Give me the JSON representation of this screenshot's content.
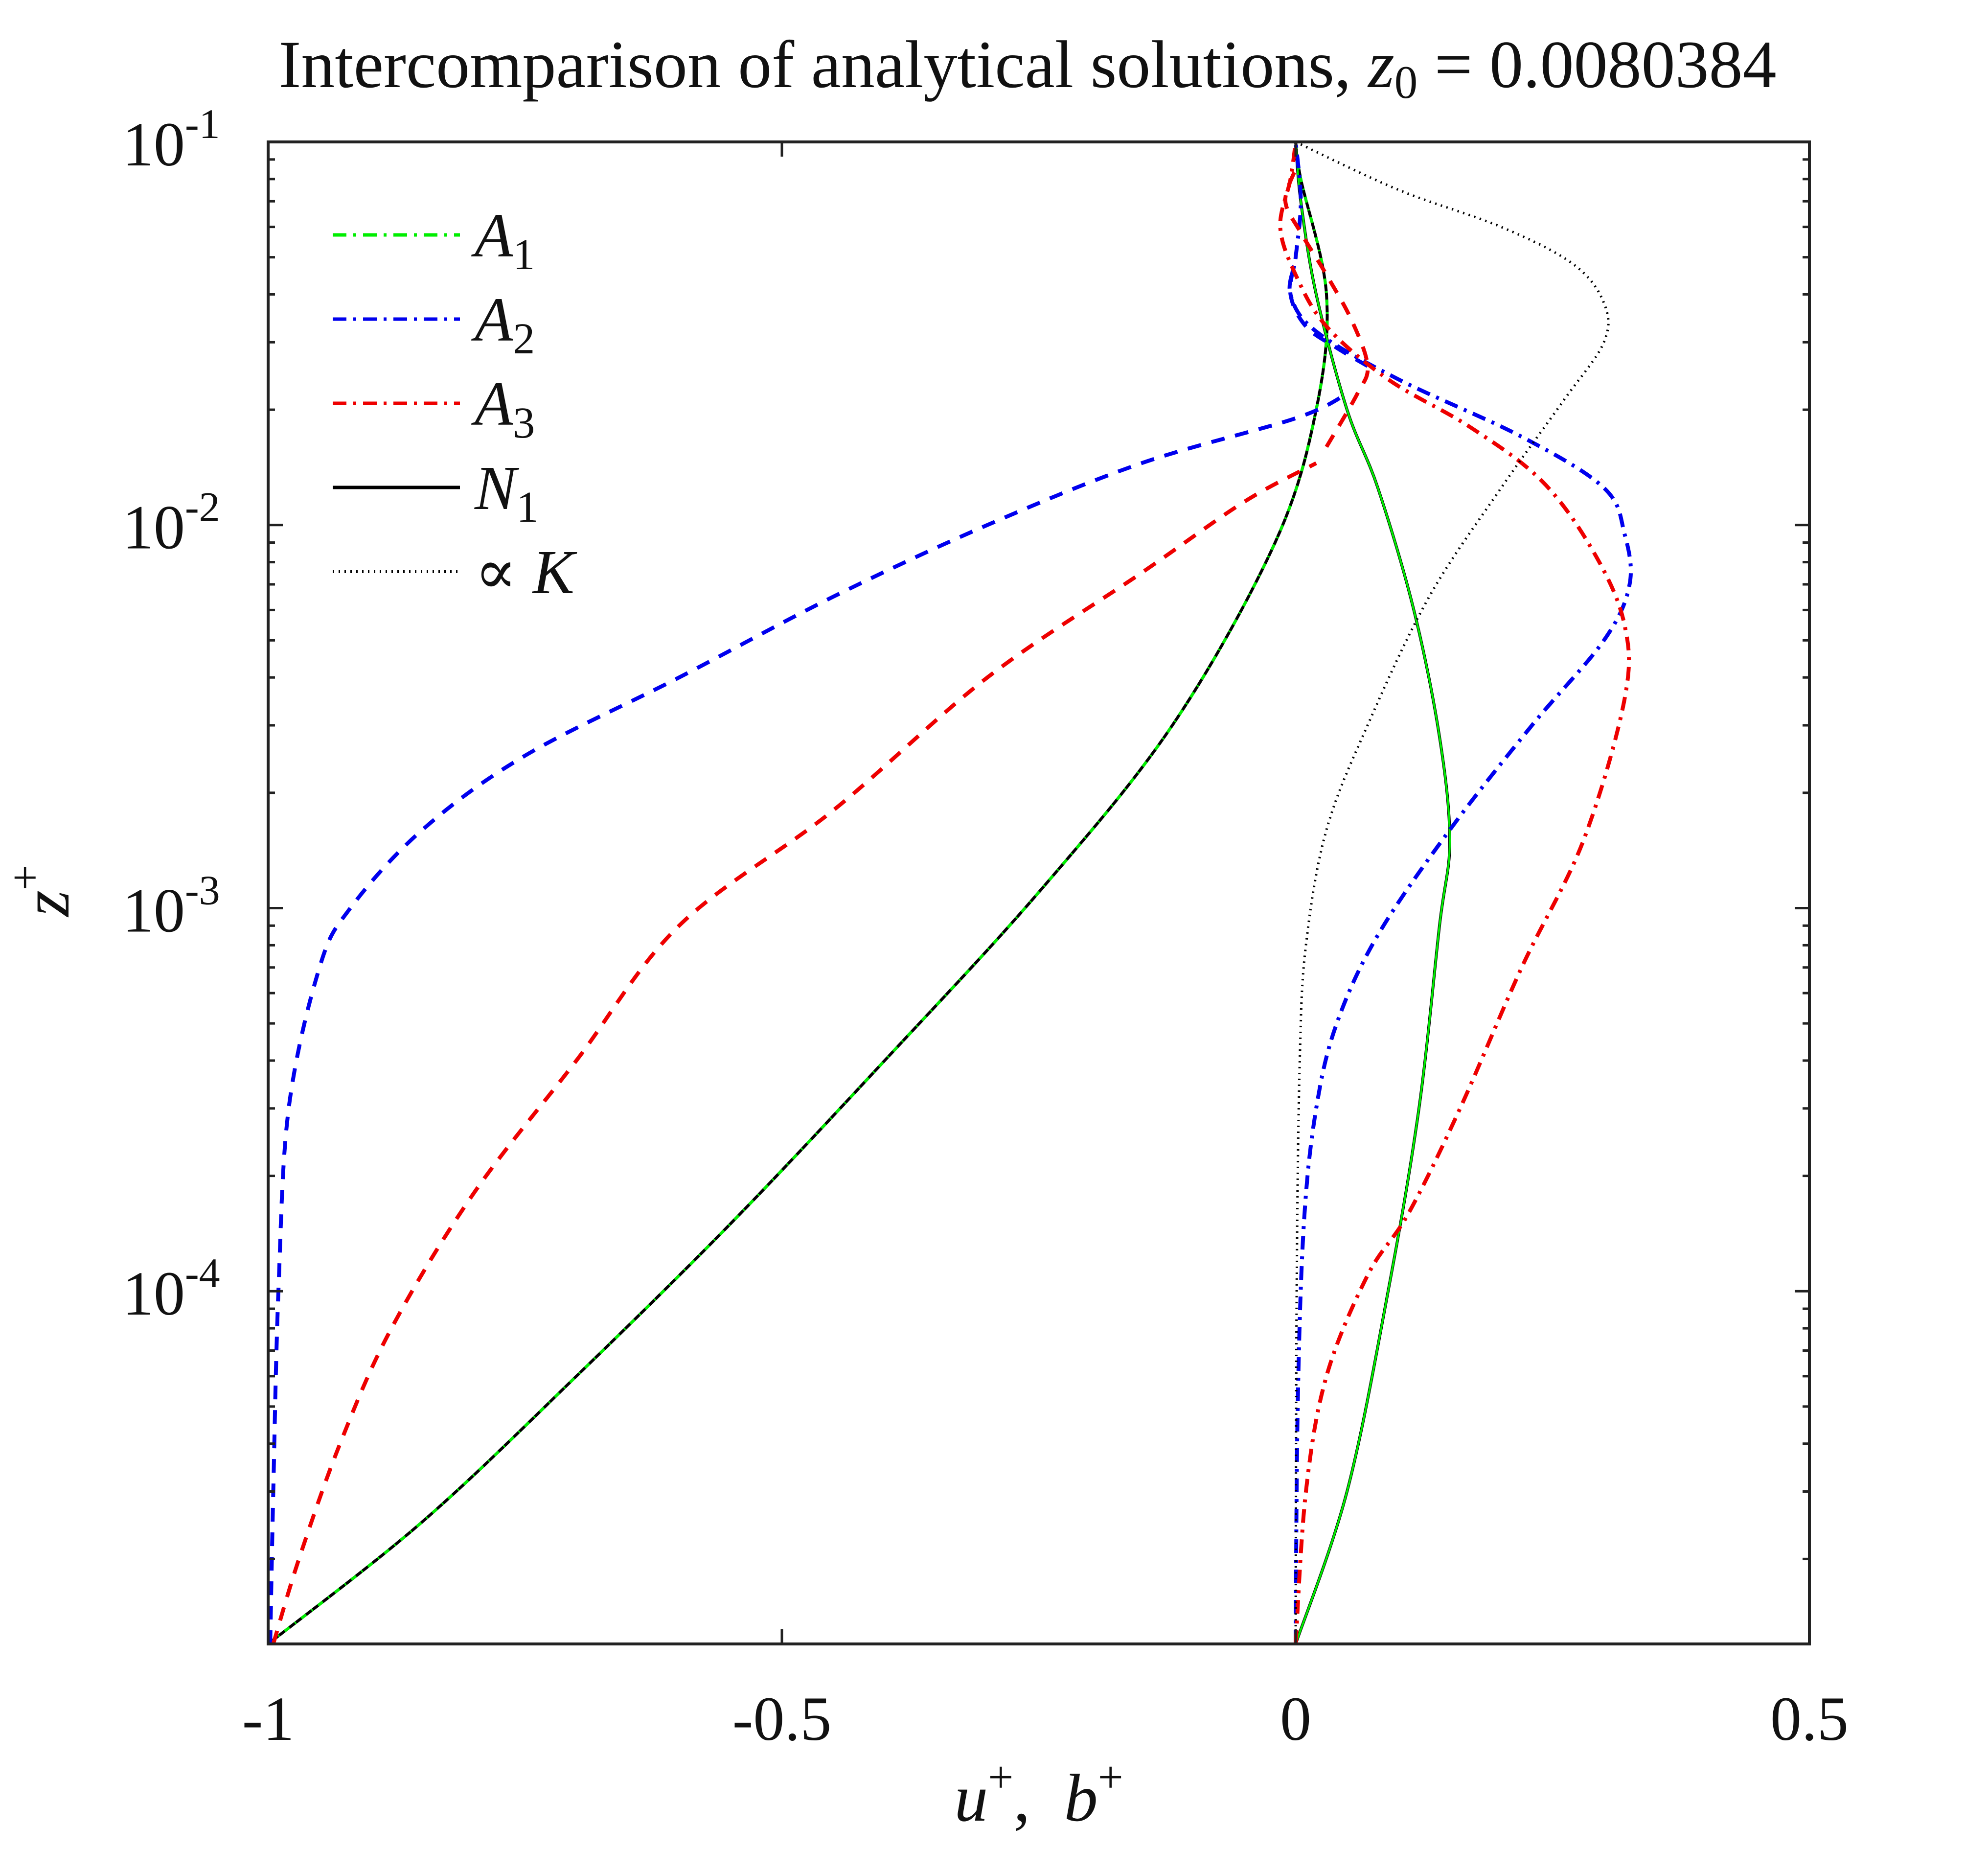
{
  "chart_data": {
    "type": "line",
    "title": "Intercomparison of analytical solutions, ",
    "title_math": {
      "var": "z",
      "sub": "0",
      "eq": " = 0.0080384"
    },
    "xlabel": {
      "a": "u",
      "sup_a": "+",
      "sep": ",  ",
      "b": "b",
      "sup_b": "+"
    },
    "ylabel": {
      "var": "z",
      "sup": "+"
    },
    "xlim": [
      -1,
      0.5
    ],
    "ylim": [
      1.2e-05,
      0.1
    ],
    "yscale": "log",
    "xticks": [
      -1,
      -0.5,
      0,
      0.5
    ],
    "xtick_labels": [
      "-1",
      "-0.5",
      "0",
      "0.5"
    ],
    "yticks": [
      0.0001,
      0.001,
      0.01,
      0.1
    ],
    "ytick_labels": [
      {
        "base": "10",
        "exp": "-4"
      },
      {
        "base": "10",
        "exp": "-3"
      },
      {
        "base": "10",
        "exp": "-2"
      },
      {
        "base": "10",
        "exp": "-1"
      }
    ],
    "grid": false,
    "legend_position": "top-left",
    "legend": [
      {
        "sym": "A",
        "sub": "1",
        "color": "#00ee00",
        "dash": "dashdot"
      },
      {
        "sym": "A",
        "sub": "2",
        "color": "#0000ee",
        "dash": "dashdot"
      },
      {
        "sym": "A",
        "sub": "3",
        "color": "#ee0000",
        "dash": "dashdot"
      },
      {
        "sym": "N",
        "sub": "1",
        "color": "#000000",
        "dash": "solid"
      },
      {
        "sym": "∝ K",
        "sub": "",
        "color": "#000000",
        "dash": "dotted"
      }
    ],
    "series": [
      {
        "color": "#000000",
        "dash": "solid",
        "width": 6,
        "points": [
          [
            -1.0,
            1.2e-05
          ],
          [
            -0.85,
            2.5e-05
          ],
          [
            -0.7,
            6e-05
          ],
          [
            -0.55,
            0.00015
          ],
          [
            -0.4,
            0.0004
          ],
          [
            -0.25,
            0.0011
          ],
          [
            -0.12,
            0.003
          ],
          [
            -0.02,
            0.009
          ],
          [
            0.02,
            0.02
          ],
          [
            0.03,
            0.04
          ],
          [
            0.005,
            0.08
          ],
          [
            0.0,
            0.1
          ]
        ]
      },
      {
        "color": "#000000",
        "dash": "solid",
        "width": 6,
        "points": [
          [
            0.0,
            1.2e-05
          ],
          [
            0.05,
            3e-05
          ],
          [
            0.09,
            0.0001
          ],
          [
            0.12,
            0.0003
          ],
          [
            0.14,
            0.0009
          ],
          [
            0.15,
            0.0015
          ],
          [
            0.14,
            0.0028
          ],
          [
            0.115,
            0.006
          ],
          [
            0.08,
            0.0125
          ],
          [
            0.05,
            0.02
          ],
          [
            0.02,
            0.04
          ],
          [
            0.005,
            0.07
          ],
          [
            0.0,
            0.1
          ]
        ]
      },
      {
        "color": "#00ee00",
        "dash": "12 14 3 14",
        "width": 6,
        "points": [
          [
            -1.0,
            1.2e-05
          ],
          [
            -0.85,
            2.5e-05
          ],
          [
            -0.7,
            6e-05
          ],
          [
            -0.55,
            0.00015
          ],
          [
            -0.4,
            0.0004
          ],
          [
            -0.25,
            0.0011
          ],
          [
            -0.12,
            0.003
          ],
          [
            -0.02,
            0.009
          ],
          [
            0.02,
            0.02
          ],
          [
            0.03,
            0.04
          ],
          [
            0.005,
            0.08
          ],
          [
            0.0,
            0.1
          ]
        ]
      },
      {
        "color": "#00ee00",
        "dash": "solid",
        "width": 4,
        "points": [
          [
            0.0,
            1.2e-05
          ],
          [
            0.05,
            3e-05
          ],
          [
            0.09,
            0.0001
          ],
          [
            0.12,
            0.0003
          ],
          [
            0.14,
            0.0009
          ],
          [
            0.15,
            0.0015
          ],
          [
            0.14,
            0.0028
          ],
          [
            0.115,
            0.006
          ],
          [
            0.08,
            0.0125
          ],
          [
            0.05,
            0.02
          ],
          [
            0.02,
            0.04
          ],
          [
            0.005,
            0.07
          ],
          [
            0.0,
            0.1
          ]
        ]
      },
      {
        "color": "#0000ee",
        "dash": "28 22",
        "width": 8,
        "points": [
          [
            -0.998,
            1.2e-05
          ],
          [
            -0.995,
            3e-05
          ],
          [
            -0.99,
            0.0001
          ],
          [
            -0.98,
            0.0003
          ],
          [
            -0.95,
            0.0007
          ],
          [
            -0.92,
            0.001
          ],
          [
            -0.85,
            0.0016
          ],
          [
            -0.75,
            0.0025
          ],
          [
            -0.6,
            0.004
          ],
          [
            -0.45,
            0.0065
          ],
          [
            -0.3,
            0.01
          ],
          [
            -0.15,
            0.0145
          ],
          [
            0.0,
            0.019
          ],
          [
            0.05,
            0.022
          ]
        ]
      },
      {
        "color": "#0000ee",
        "dash": "28 22",
        "width": 8,
        "points": [
          [
            0.07,
            0.026
          ],
          [
            0.04,
            0.029
          ],
          [
            0.01,
            0.033
          ],
          [
            -0.005,
            0.04
          ],
          [
            0.0,
            0.05
          ]
        ]
      },
      {
        "color": "#0000ee",
        "dash": "28 14 6 14",
        "width": 8,
        "points": [
          [
            0.0,
            1.2e-05
          ],
          [
            0.002,
            5e-05
          ],
          [
            0.008,
            0.00015
          ],
          [
            0.02,
            0.0003
          ],
          [
            0.04,
            0.0005
          ],
          [
            0.08,
            0.00085
          ],
          [
            0.15,
            0.0016
          ],
          [
            0.23,
            0.003
          ],
          [
            0.3,
            0.005
          ],
          [
            0.325,
            0.007
          ],
          [
            0.32,
            0.0095
          ],
          [
            0.3,
            0.0125
          ],
          [
            0.22,
            0.017
          ],
          [
            0.1,
            0.024
          ],
          [
            0.02,
            0.032
          ],
          [
            -0.005,
            0.04
          ],
          [
            0.0,
            0.05
          ],
          [
            0.005,
            0.07
          ],
          [
            0.0,
            0.1
          ]
        ]
      },
      {
        "color": "#ee0000",
        "dash": "28 22",
        "width": 8,
        "points": [
          [
            -0.995,
            1.2e-05
          ],
          [
            -0.97,
            2e-05
          ],
          [
            -0.93,
            4e-05
          ],
          [
            -0.88,
            8e-05
          ],
          [
            -0.8,
            0.00018
          ],
          [
            -0.7,
            0.0004
          ],
          [
            -0.6,
            0.0009
          ],
          [
            -0.45,
            0.0018
          ],
          [
            -0.3,
            0.004
          ],
          [
            -0.15,
            0.0075
          ],
          [
            -0.05,
            0.0115
          ],
          [
            0.02,
            0.0145
          ]
        ]
      },
      {
        "color": "#ee0000",
        "dash": "28 22",
        "width": 8,
        "points": [
          [
            0.03,
            0.016
          ],
          [
            0.06,
            0.022
          ],
          [
            0.07,
            0.026
          ],
          [
            0.055,
            0.034
          ],
          [
            0.03,
            0.045
          ],
          [
            0.005,
            0.058
          ],
          [
            -0.01,
            0.07
          ],
          [
            0.0,
            0.085
          ]
        ]
      },
      {
        "color": "#ee0000",
        "dash": "28 14 6 14",
        "width": 8,
        "points": [
          [
            0.0,
            1.2e-05
          ],
          [
            0.01,
            3e-05
          ],
          [
            0.03,
            6e-05
          ],
          [
            0.07,
            0.00011
          ],
          [
            0.11,
            0.00016
          ],
          [
            0.16,
            0.0003
          ],
          [
            0.22,
            0.0007
          ],
          [
            0.28,
            0.0015
          ],
          [
            0.32,
            0.0035
          ],
          [
            0.32,
            0.0055
          ],
          [
            0.29,
            0.0085
          ],
          [
            0.24,
            0.013
          ],
          [
            0.17,
            0.018
          ],
          [
            0.09,
            0.024
          ],
          [
            0.03,
            0.033
          ],
          [
            0.0,
            0.045
          ],
          [
            -0.015,
            0.06
          ],
          [
            -0.005,
            0.08
          ],
          [
            0.0,
            0.1
          ]
        ]
      },
      {
        "color": "#000000",
        "dash": "3 9",
        "width": 5,
        "points": [
          [
            0.0,
            1.2e-05
          ],
          [
            0.001,
            0.0001
          ],
          [
            0.004,
            0.0004
          ],
          [
            0.01,
            0.0008
          ],
          [
            0.03,
            0.0016
          ],
          [
            0.07,
            0.003
          ],
          [
            0.13,
            0.0065
          ],
          [
            0.2,
            0.0125
          ],
          [
            0.26,
            0.021
          ],
          [
            0.3,
            0.03
          ],
          [
            0.3,
            0.038
          ],
          [
            0.27,
            0.048
          ],
          [
            0.2,
            0.06
          ],
          [
            0.1,
            0.075
          ],
          [
            0.0,
            0.1
          ]
        ]
      }
    ]
  }
}
